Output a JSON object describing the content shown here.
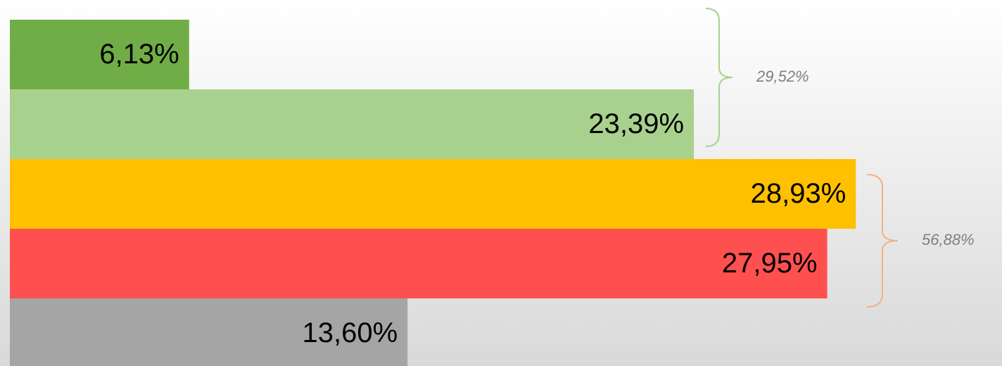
{
  "chart_data": {
    "type": "bar",
    "values": [
      6.13,
      23.39,
      28.93,
      27.95,
      13.6
    ],
    "value_labels": [
      "6,13%",
      "23,39%",
      "28,93%",
      "27,95%",
      "13,60%"
    ],
    "colors": [
      "#70ad47",
      "#a9d18e",
      "#ffc000",
      "#ff5050",
      "#a5a5a5"
    ],
    "annotations": [
      {
        "label": "29,52%",
        "color": "#a9d18e"
      },
      {
        "label": "56,88%",
        "color": "#f4b183"
      }
    ]
  }
}
